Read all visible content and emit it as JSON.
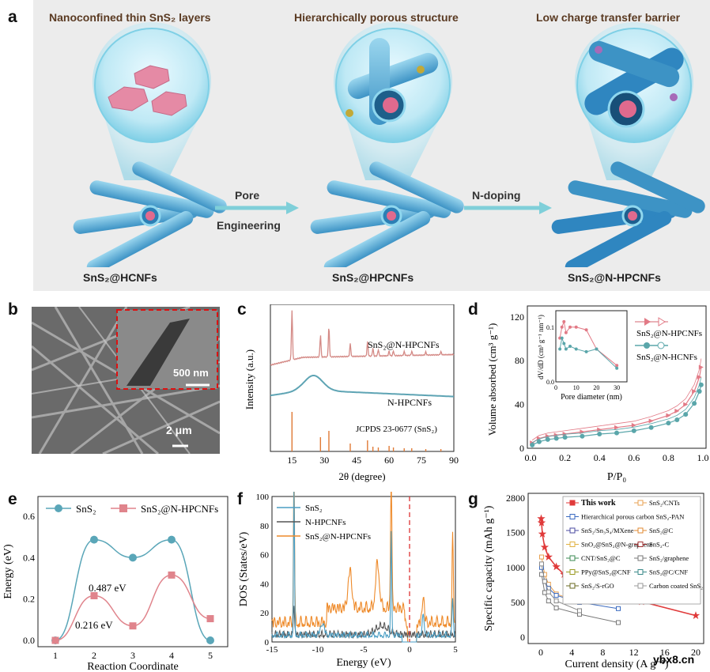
{
  "panel_a": {
    "letter": "a",
    "stage1_title": "Nanoconfined thin SnS₂ layers",
    "stage2_title": "Hierarchically porous structure",
    "stage3_title": "Low charge transfer barrier",
    "stage1_label": "SnS₂@HCNFs",
    "stage2_label": "SnS₂@HPCNFs",
    "stage3_label": "SnS₂@N-HPCNFs",
    "arrow1_line1": "Pore",
    "arrow1_line2": "Engineering",
    "arrow2_label": "N-doping"
  },
  "panel_b": {
    "letter": "b",
    "inset_scale": "500 nm",
    "main_scale": "2 μm"
  },
  "panel_c": {
    "letter": "c",
    "ylabel": "Intensity (a.u.)",
    "xlabel": "2θ (degree)",
    "xticks": [
      "15",
      "30",
      "45",
      "60",
      "75",
      "90"
    ],
    "label_top": "SnS₂@N-HPCNFs",
    "label_mid": "N-HPCNFs",
    "label_ref": "JCPDS 23-0677 (SnS₂)"
  },
  "panel_d": {
    "letter": "d",
    "ylabel": "Volume absorbed (cm³ g⁻¹)",
    "xlabel": "P/P₀",
    "yticks": [
      "0",
      "40",
      "80",
      "120"
    ],
    "xticks": [
      "0.0",
      "0.2",
      "0.4",
      "0.6",
      "0.8",
      "1.0"
    ],
    "legend1": "SnS₂@N-HPCNFs",
    "legend2": "SnS₂@N-HCNFs",
    "inset_ylabel": "dV/dD (cm³ g⁻¹ nm⁻¹)",
    "inset_xlabel": "Pore diameter (nm)",
    "inset_yticks": [
      "0.0",
      "0.1"
    ],
    "inset_xticks": [
      "0",
      "10",
      "20",
      "30"
    ]
  },
  "panel_e": {
    "letter": "e",
    "ylabel": "Energy (eV)",
    "xlabel": "Reaction Coordinate",
    "yticks": [
      "0.0",
      "0.2",
      "0.4",
      "0.6"
    ],
    "xticks": [
      "1",
      "2",
      "3",
      "4",
      "5"
    ],
    "legend1": "SnS₂",
    "legend2": "SnS₂@N-HPCNFs",
    "annot1": "0.487 eV",
    "annot2": "0.216 eV"
  },
  "panel_f": {
    "letter": "f",
    "ylabel": "DOS (States/eV)",
    "xlabel": "Energy (eV)",
    "yticks": [
      "0",
      "20",
      "40",
      "60",
      "80",
      "100"
    ],
    "xticks": [
      "-15",
      "-10",
      "-5",
      "0",
      "5"
    ],
    "legend1": "SnS₂",
    "legend2": "N-HPCNFs",
    "legend3": "SnS₂@N-HPCNFs"
  },
  "panel_g": {
    "letter": "g",
    "ylabel": "Specific capacity (mAh g⁻¹)",
    "xlabel": "Current density (A g⁻¹)",
    "yticks": [
      "0",
      "500",
      "1000",
      "1500",
      "2800"
    ],
    "xticks": [
      "0",
      "4",
      "8",
      "12",
      "16",
      "20"
    ],
    "legend": [
      "This work",
      "SnS₂/CNTs",
      "Hierarchical porous carbon SnS₂-PAN",
      "",
      "SnS₂/Sn₃S₄/MXene",
      "SnS₂@C",
      "SnO₂@SnS₂@N-graphene",
      "SnS₂-C",
      "CNT/SnS₂@C",
      "SnS₂/graphene",
      "PPy@SnS₂@CNF",
      "SnS₂@C/CNF",
      "SnS₂/S-rGO",
      "Carbon coated SnS₂"
    ]
  },
  "watermark": "ybx8.cn",
  "chart_data": [
    {
      "type": "line",
      "panel": "e",
      "xlabel": "Reaction Coordinate",
      "ylabel": "Energy (eV)",
      "x": [
        1,
        2,
        3,
        4,
        5
      ],
      "ylim": [
        0,
        0.65
      ],
      "series": [
        {
          "name": "SnS₂",
          "values": [
            0.0,
            0.487,
            0.4,
            0.487,
            0.0
          ]
        },
        {
          "name": "SnS₂@N-HPCNFs",
          "values": [
            0.0,
            0.216,
            0.07,
            0.316,
            0.105
          ]
        }
      ]
    },
    {
      "type": "line",
      "panel": "d",
      "xlabel": "P/P₀",
      "ylabel": "Volume absorbed (cm³ g⁻¹)",
      "ylim": [
        0,
        130
      ],
      "series": [
        {
          "name": "SnS₂@N-HPCNFs",
          "x": [
            0.01,
            0.05,
            0.1,
            0.15,
            0.2,
            0.3,
            0.4,
            0.5,
            0.6,
            0.7,
            0.8,
            0.85,
            0.9,
            0.95,
            0.98,
            0.99
          ],
          "values": [
            5,
            9,
            11,
            12,
            13,
            15,
            17,
            19,
            21,
            25,
            30,
            34,
            40,
            52,
            65,
            74
          ]
        },
        {
          "name": "SnS₂@N-HCNFs",
          "x": [
            0.01,
            0.05,
            0.1,
            0.15,
            0.2,
            0.3,
            0.4,
            0.5,
            0.6,
            0.7,
            0.8,
            0.85,
            0.9,
            0.95,
            0.98,
            0.99
          ],
          "values": [
            3,
            6,
            8,
            9,
            10,
            11,
            13,
            14,
            16,
            19,
            23,
            26,
            31,
            41,
            52,
            58
          ]
        }
      ]
    },
    {
      "type": "line",
      "panel": "d-inset",
      "xlabel": "Pore diameter (nm)",
      "ylabel": "dV/dD (cm³ g⁻¹ nm⁻¹)",
      "series": [
        {
          "name": "SnS₂@N-HPCNFs",
          "x": [
            2,
            3,
            4,
            5,
            7,
            10,
            15,
            20,
            30
          ],
          "values": [
            0.08,
            0.1,
            0.11,
            0.09,
            0.1,
            0.1,
            0.095,
            0.06,
            0.03
          ]
        },
        {
          "name": "SnS₂@N-HCNFs",
          "x": [
            2,
            3,
            4,
            5,
            7,
            10,
            15,
            20,
            30
          ],
          "values": [
            0.06,
            0.08,
            0.07,
            0.06,
            0.065,
            0.06,
            0.055,
            0.06,
            0.025
          ]
        }
      ]
    },
    {
      "type": "line",
      "panel": "g",
      "xlabel": "Current density (A g⁻¹)",
      "ylabel": "Specific capacity (mAh g⁻¹)",
      "series": [
        {
          "name": "This work",
          "x": [
            0.05,
            0.1,
            0.2,
            0.5,
            1,
            2,
            3,
            5,
            7,
            10,
            13,
            20
          ],
          "values": [
            1900,
            1640,
            1480,
            1290,
            1150,
            1010,
            900,
            780,
            710,
            610,
            510,
            310
          ]
        },
        {
          "name": "SnS₂/CNTs",
          "x": [
            0.1,
            0.5,
            1,
            2,
            5
          ],
          "values": [
            1150,
            900,
            760,
            620,
            500
          ]
        },
        {
          "name": "SnS₂@C",
          "x": [
            0.1,
            0.5,
            1,
            2,
            5,
            10
          ],
          "values": [
            1000,
            800,
            700,
            600,
            500,
            410
          ]
        },
        {
          "name": "SnS₂/graphene",
          "x": [
            0.1,
            0.5,
            1,
            2,
            5,
            10
          ],
          "values": [
            900,
            640,
            520,
            420,
            330,
            210
          ]
        },
        {
          "name": "Carbon coated SnS₂",
          "x": [
            0.1,
            0.5,
            1,
            2,
            5
          ],
          "values": [
            1050,
            800,
            650,
            520,
            380
          ]
        }
      ]
    }
  ]
}
